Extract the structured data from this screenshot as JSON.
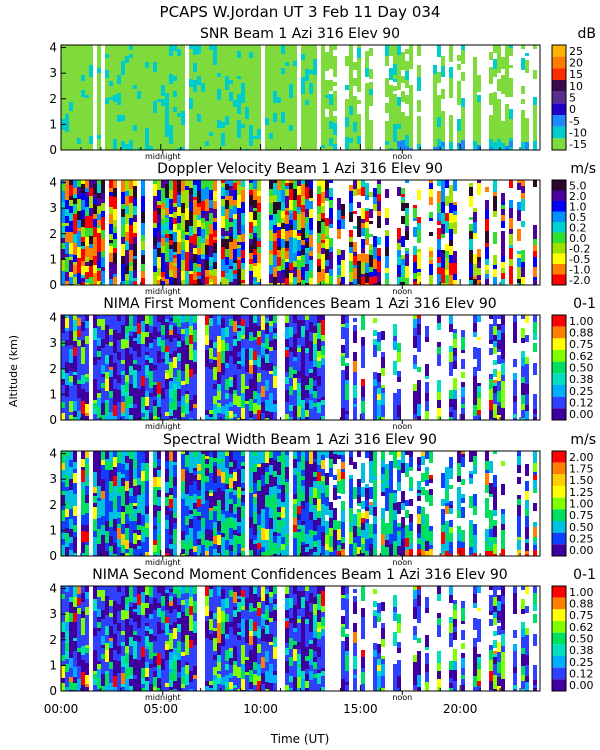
{
  "header": {
    "title": "PCAPS W.Jordan UT   3 Feb 11 Day 034"
  },
  "shared": {
    "ylabel": "Altitude (km)",
    "xlabel": "Time (UT)",
    "x_ticks": [
      "00:00",
      "05:00",
      "10:00",
      "15:00",
      "20:00"
    ],
    "x_tick_hours": [
      0,
      5,
      10,
      15,
      20
    ],
    "markers": [
      {
        "label": "midnight",
        "hour": 5.1
      },
      {
        "label": "noon",
        "hour": 17.1
      }
    ],
    "y_ticks": [
      "0",
      "1",
      "2",
      "3",
      "4"
    ]
  },
  "chart_data": [
    {
      "type": "heatmap",
      "title": "SNR Beam 1 Azi 316 Elev 90",
      "unit": "dB",
      "xlim": [
        0,
        24
      ],
      "ylim": [
        0,
        4.1
      ],
      "colorbar": {
        "labels": [
          "25",
          "20",
          "15",
          "10",
          "5",
          "0",
          "-5",
          "-10",
          "-15"
        ],
        "colors": [
          "#ffb300",
          "#ff7a00",
          "#ff2b00",
          "#3a0a4a",
          "#5b2d8e",
          "#1e00c8",
          "#1e88ff",
          "#00cccc",
          "#7fdb3c"
        ]
      }
    },
    {
      "type": "heatmap",
      "title": "Doppler Velocity Beam 1 Azi 316 Elev 90",
      "unit": "m/s",
      "xlim": [
        0,
        24
      ],
      "ylim": [
        0,
        4.1
      ],
      "colorbar": {
        "labels": [
          "5.0",
          "2.0",
          "1.0",
          "0.5",
          "0.2",
          "0.0",
          "-0.2",
          "-0.5",
          "-1.0",
          "-2.0"
        ],
        "colors": [
          "#2a0a2a",
          "#4b00a0",
          "#0000ff",
          "#0090ff",
          "#00d0d0",
          "#30e030",
          "#a0e000",
          "#ffff00",
          "#ff8000",
          "#ff0000"
        ]
      }
    },
    {
      "type": "heatmap",
      "title": "NIMA First Moment Confidences Beam 1 Azi 316 Elev 90",
      "unit": "0-1",
      "xlim": [
        0,
        24
      ],
      "ylim": [
        0,
        4.1
      ],
      "colorbar": {
        "labels": [
          "1.00",
          "0.88",
          "0.75",
          "0.62",
          "0.50",
          "0.38",
          "0.25",
          "0.12",
          "0.00"
        ],
        "colors": [
          "#ff0000",
          "#ff8000",
          "#ffff00",
          "#80ff00",
          "#00e060",
          "#00e0c0",
          "#00b0ff",
          "#3040ff",
          "#4000a0"
        ]
      }
    },
    {
      "type": "heatmap",
      "title": "Spectral Width Beam 1 Azi 316 Elev 90",
      "unit": "m/s",
      "xlim": [
        0,
        24
      ],
      "ylim": [
        0,
        4.1
      ],
      "colorbar": {
        "labels": [
          "2.00",
          "1.75",
          "1.50",
          "1.25",
          "1.00",
          "0.75",
          "0.50",
          "0.25",
          "0.00"
        ],
        "colors": [
          "#ff0000",
          "#ff8000",
          "#ffd000",
          "#ffff00",
          "#80ff00",
          "#00e060",
          "#00c0e0",
          "#1040ff",
          "#4000a0"
        ]
      }
    },
    {
      "type": "heatmap",
      "title": "NIMA Second Moment Confidences Beam 1 Azi 316 Elev 90",
      "unit": "0-1",
      "xlim": [
        0,
        24
      ],
      "ylim": [
        0,
        4.1
      ],
      "colorbar": {
        "labels": [
          "1.00",
          "0.88",
          "0.75",
          "0.62",
          "0.50",
          "0.38",
          "0.25",
          "0.12",
          "0.00"
        ],
        "colors": [
          "#ff0000",
          "#ff8000",
          "#ffff00",
          "#80ff00",
          "#00e060",
          "#00e0c0",
          "#00b0ff",
          "#3040ff",
          "#4000a0"
        ]
      }
    }
  ]
}
